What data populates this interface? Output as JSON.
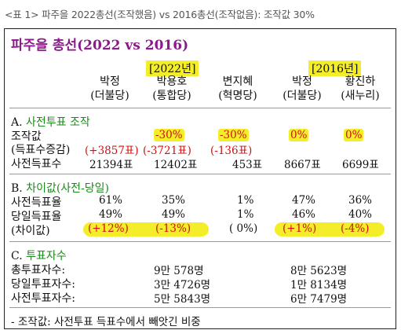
{
  "caption": "<표 1> 파주을 2022총선(조작했음) vs 2016총선(조작없음): 조작값 30%",
  "title": "파주을 총선(2022 vs 2016)",
  "years": {
    "y2022": "[2022년]",
    "y2016": "[2016년]"
  },
  "columns": [
    {
      "name": "박정",
      "party": "(더불당)"
    },
    {
      "name": "박용호",
      "party": "(통합당)"
    },
    {
      "name": "변지혜",
      "party": "(혁명당)"
    },
    {
      "name": "박정",
      "party": "(더불당)"
    },
    {
      "name": "황진하",
      "party": "(새누리)"
    }
  ],
  "sectionA": {
    "heading_prefix": "A.",
    "heading": "사전투표 조작",
    "row1_label": "조작값",
    "manip": [
      "-30%",
      "-30%",
      "0%",
      "0%"
    ],
    "row2_label": "(득표수증감)",
    "delta": [
      "(+3857표)",
      "(-3721표)",
      "(-136표)"
    ],
    "row3_label": "사전득표수",
    "early_votes": [
      "21394표",
      "12402표",
      "453표",
      "8667표",
      "6699표"
    ]
  },
  "sectionB": {
    "heading_prefix": "B.",
    "heading": "차이값(사전-당일)",
    "rows": [
      {
        "label": "사전득표율",
        "values": [
          "61%",
          "35%",
          "1%",
          "47%",
          "36%"
        ]
      },
      {
        "label": "당일득표율",
        "values": [
          "49%",
          "49%",
          "1%",
          "46%",
          "40%"
        ]
      },
      {
        "label": "(차이값)",
        "values": [
          "(+12%)",
          "(-13%)",
          "( 0%)",
          "(+1%)",
          "(-4%)"
        ]
      }
    ]
  },
  "sectionC": {
    "heading_prefix": "C.",
    "heading": "투표자수",
    "rows": [
      {
        "label": "총투표자수:",
        "v2022": "9만 578명",
        "v2016": "8만 5623명"
      },
      {
        "label": "당일투표자수:",
        "v2022": "3만 4726명",
        "v2016": "1만 8134명"
      },
      {
        "label": "사전투표자수:",
        "v2022": "5만 5843명",
        "v2016": "6만 7479명"
      }
    ]
  },
  "footnote": "- 조작값: 사전투표 득표수에서 빼앗긴 비중"
}
